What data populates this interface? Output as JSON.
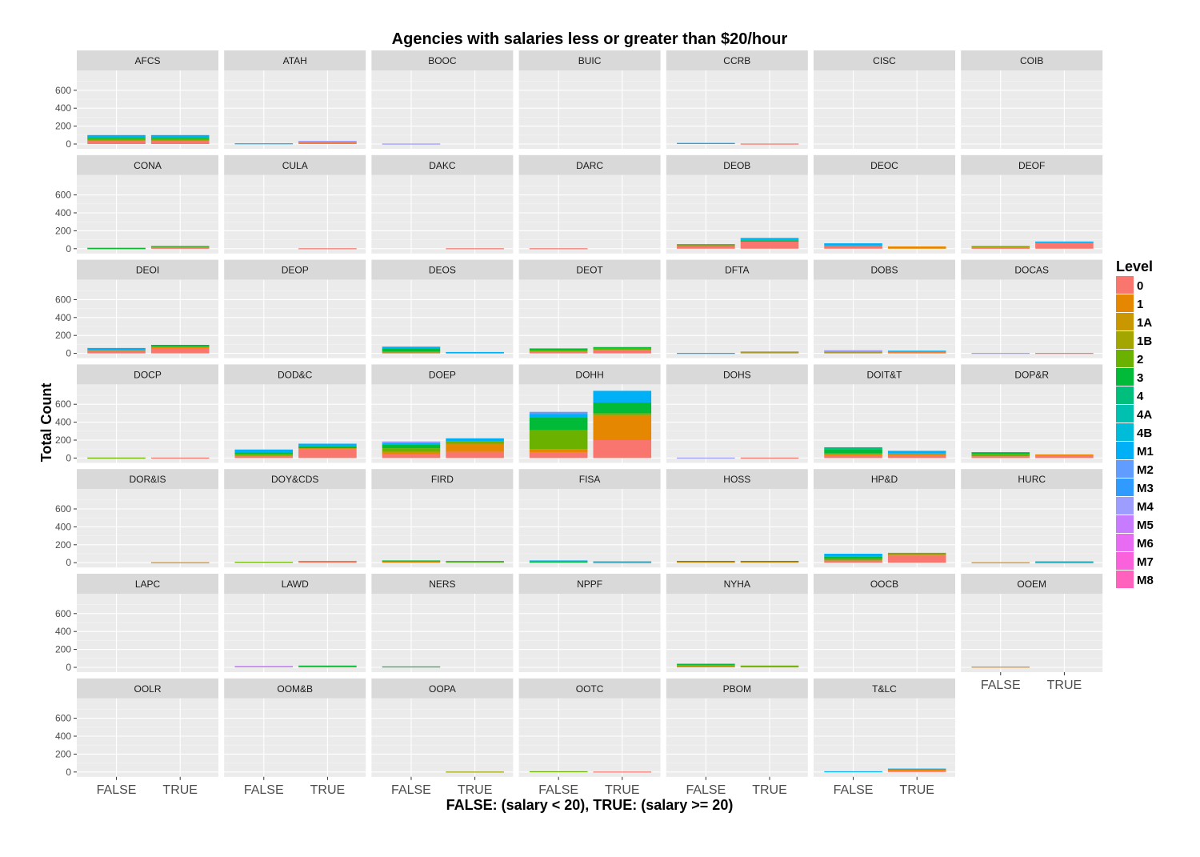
{
  "chart_data": {
    "type": "bar",
    "title": "Agencies with salaries less or greater than $20/hour",
    "xlabel": "FALSE: (salary < 20), TRUE: (salary >= 20)",
    "ylabel": "Total Count",
    "categories": [
      "FALSE",
      "TRUE"
    ],
    "ylim": [
      0,
      750
    ],
    "yticks": [
      0,
      200,
      400,
      600
    ],
    "grid": true,
    "legend": {
      "title": "Level",
      "position": "right",
      "levels": [
        "0",
        "1",
        "1A",
        "1B",
        "2",
        "3",
        "4",
        "4A",
        "4B",
        "M1",
        "M2",
        "M3",
        "M4",
        "M5",
        "M6",
        "M7",
        "M8"
      ],
      "colors": [
        "#F8766D",
        "#E58700",
        "#C99800",
        "#A3A500",
        "#6BB100",
        "#00BA38",
        "#00BF7D",
        "#00C0AF",
        "#00BCD8",
        "#00B0F6",
        "#619CFF",
        "#2f9bff",
        "#9d9dff",
        "#c77cff",
        "#e76bf3",
        "#fa62db",
        "#ff62bc"
      ]
    },
    "panels": [
      {
        "name": "AFCS",
        "false": [
          {
            "level": "0",
            "value": 35
          },
          {
            "level": "1",
            "value": 10
          },
          {
            "level": "2",
            "value": 10
          },
          {
            "level": "3",
            "value": 15
          },
          {
            "level": "4",
            "value": 10
          },
          {
            "level": "M1",
            "value": 20
          }
        ],
        "true": [
          {
            "level": "0",
            "value": 35
          },
          {
            "level": "1",
            "value": 10
          },
          {
            "level": "2",
            "value": 10
          },
          {
            "level": "3",
            "value": 15
          },
          {
            "level": "4",
            "value": 10
          },
          {
            "level": "M1",
            "value": 20
          }
        ]
      },
      {
        "name": "ATAH",
        "false": [
          {
            "level": "M1",
            "value": 8
          }
        ],
        "true": [
          {
            "level": "0",
            "value": 20
          },
          {
            "level": "1",
            "value": 5
          },
          {
            "level": "M4",
            "value": 10
          }
        ]
      },
      {
        "name": "BOOC",
        "false": [
          {
            "level": "M4",
            "value": 5
          }
        ],
        "true": []
      },
      {
        "name": "BUIC",
        "false": [],
        "true": []
      },
      {
        "name": "CCRB",
        "false": [
          {
            "level": "M1",
            "value": 12
          }
        ],
        "true": [
          {
            "level": "0",
            "value": 5
          }
        ]
      },
      {
        "name": "CISC",
        "false": [],
        "true": []
      },
      {
        "name": "COIB",
        "false": [],
        "true": []
      },
      {
        "name": "CONA",
        "false": [
          {
            "level": "2",
            "value": 5
          },
          {
            "level": "3",
            "value": 5
          }
        ],
        "true": [
          {
            "level": "0",
            "value": 10
          },
          {
            "level": "1",
            "value": 10
          },
          {
            "level": "3",
            "value": 10
          }
        ]
      },
      {
        "name": "CULA",
        "false": [],
        "true": [
          {
            "level": "0",
            "value": 5
          }
        ]
      },
      {
        "name": "DAKC",
        "false": [],
        "true": [
          {
            "level": "0",
            "value": 5
          }
        ]
      },
      {
        "name": "DARC",
        "false": [
          {
            "level": "0",
            "value": 5
          }
        ],
        "true": []
      },
      {
        "name": "DEOB",
        "false": [
          {
            "level": "0",
            "value": 25
          },
          {
            "level": "1",
            "value": 15
          },
          {
            "level": "3",
            "value": 10
          }
        ],
        "true": [
          {
            "level": "0",
            "value": 80
          },
          {
            "level": "3",
            "value": 10
          },
          {
            "level": "4",
            "value": 10
          },
          {
            "level": "M1",
            "value": 20
          }
        ]
      },
      {
        "name": "DEOC",
        "false": [
          {
            "level": "0",
            "value": 25
          },
          {
            "level": "1",
            "value": 10
          },
          {
            "level": "M1",
            "value": 25
          }
        ],
        "true": [
          {
            "level": "1",
            "value": 25
          }
        ]
      },
      {
        "name": "DEOF",
        "false": [
          {
            "level": "0",
            "value": 10
          },
          {
            "level": "1",
            "value": 15
          },
          {
            "level": "2",
            "value": 5
          }
        ],
        "true": [
          {
            "level": "0",
            "value": 70
          },
          {
            "level": "1",
            "value": 5
          },
          {
            "level": "M1",
            "value": 5
          }
        ]
      },
      {
        "name": "DEOI",
        "false": [
          {
            "level": "0",
            "value": 30
          },
          {
            "level": "2",
            "value": 10
          },
          {
            "level": "M1",
            "value": 20
          }
        ],
        "true": [
          {
            "level": "0",
            "value": 55
          },
          {
            "level": "1",
            "value": 20
          },
          {
            "level": "3",
            "value": 20
          }
        ]
      },
      {
        "name": "DEOP",
        "false": [],
        "true": []
      },
      {
        "name": "DEOS",
        "false": [
          {
            "level": "0",
            "value": 10
          },
          {
            "level": "2",
            "value": 10
          },
          {
            "level": "3",
            "value": 35
          },
          {
            "level": "M1",
            "value": 20
          }
        ],
        "true": [
          {
            "level": "2",
            "value": 10
          },
          {
            "level": "M1",
            "value": 5
          }
        ]
      },
      {
        "name": "DEOT",
        "false": [
          {
            "level": "0",
            "value": 20
          },
          {
            "level": "2",
            "value": 15
          },
          {
            "level": "3",
            "value": 20
          }
        ],
        "true": [
          {
            "level": "0",
            "value": 40
          },
          {
            "level": "2",
            "value": 15
          },
          {
            "level": "3",
            "value": 15
          }
        ]
      },
      {
        "name": "DFTA",
        "false": [
          {
            "level": "M1",
            "value": 5
          }
        ],
        "true": [
          {
            "level": "0",
            "value": 10
          },
          {
            "level": "2",
            "value": 10
          }
        ]
      },
      {
        "name": "DOBS",
        "false": [
          {
            "level": "0",
            "value": 10
          },
          {
            "level": "2",
            "value": 10
          },
          {
            "level": "M4",
            "value": 15
          }
        ],
        "true": [
          {
            "level": "0",
            "value": 10
          },
          {
            "level": "1",
            "value": 10
          },
          {
            "level": "M1",
            "value": 10
          }
        ]
      },
      {
        "name": "DOCAS",
        "false": [
          {
            "level": "M4",
            "value": 5
          }
        ],
        "true": [
          {
            "level": "0",
            "value": 5
          }
        ]
      },
      {
        "name": "DOCP",
        "false": [
          {
            "level": "2",
            "value": 5
          }
        ],
        "true": [
          {
            "level": "0",
            "value": 5
          }
        ]
      },
      {
        "name": "DOD&C",
        "false": [
          {
            "level": "0",
            "value": 20
          },
          {
            "level": "1",
            "value": 10
          },
          {
            "level": "2",
            "value": 15
          },
          {
            "level": "3",
            "value": 20
          },
          {
            "level": "M1",
            "value": 30
          }
        ],
        "true": [
          {
            "level": "0",
            "value": 100
          },
          {
            "level": "1",
            "value": 10
          },
          {
            "level": "3",
            "value": 20
          },
          {
            "level": "M1",
            "value": 30
          }
        ]
      },
      {
        "name": "DOEP",
        "false": [
          {
            "level": "0",
            "value": 40
          },
          {
            "level": "1",
            "value": 30
          },
          {
            "level": "2",
            "value": 40
          },
          {
            "level": "3",
            "value": 40
          },
          {
            "level": "M1",
            "value": 20
          },
          {
            "level": "M4",
            "value": 15
          }
        ],
        "true": [
          {
            "level": "0",
            "value": 70
          },
          {
            "level": "1",
            "value": 90
          },
          {
            "level": "2",
            "value": 30
          },
          {
            "level": "M1",
            "value": 30
          }
        ]
      },
      {
        "name": "DOHH",
        "false": [
          {
            "level": "0",
            "value": 60
          },
          {
            "level": "1",
            "value": 40
          },
          {
            "level": "2",
            "value": 210
          },
          {
            "level": "3",
            "value": 140
          },
          {
            "level": "M1",
            "value": 40
          },
          {
            "level": "M2",
            "value": 25
          }
        ],
        "true": [
          {
            "level": "0",
            "value": 200
          },
          {
            "level": "1",
            "value": 280
          },
          {
            "level": "2",
            "value": 20
          },
          {
            "level": "3",
            "value": 120
          },
          {
            "level": "M1",
            "value": 130
          }
        ]
      },
      {
        "name": "DOHS",
        "false": [
          {
            "level": "M4",
            "value": 5
          }
        ],
        "true": [
          {
            "level": "0",
            "value": 5
          }
        ]
      },
      {
        "name": "DOIT&T",
        "false": [
          {
            "level": "0",
            "value": 25
          },
          {
            "level": "1",
            "value": 25
          },
          {
            "level": "3",
            "value": 50
          },
          {
            "level": "4",
            "value": 20
          }
        ],
        "true": [
          {
            "level": "0",
            "value": 30
          },
          {
            "level": "1",
            "value": 20
          },
          {
            "level": "M1",
            "value": 30
          }
        ]
      },
      {
        "name": "DOP&R",
        "false": [
          {
            "level": "0",
            "value": 20
          },
          {
            "level": "2",
            "value": 25
          },
          {
            "level": "3",
            "value": 20
          }
        ],
        "true": [
          {
            "level": "0",
            "value": 30
          },
          {
            "level": "1",
            "value": 10
          }
        ]
      },
      {
        "name": "DOR&IS",
        "false": [],
        "true": [
          {
            "level": "1",
            "value": 5
          }
        ]
      },
      {
        "name": "DOY&CDS",
        "false": [
          {
            "level": "2",
            "value": 10
          }
        ],
        "true": [
          {
            "level": "0",
            "value": 10
          },
          {
            "level": "1",
            "value": 10
          }
        ]
      },
      {
        "name": "FIRD",
        "false": [
          {
            "level": "1",
            "value": 20
          },
          {
            "level": "3",
            "value": 5
          }
        ],
        "true": [
          {
            "level": "2",
            "value": 10
          },
          {
            "level": "M1",
            "value": 10
          }
        ]
      },
      {
        "name": "FISA",
        "false": [
          {
            "level": "3",
            "value": 10
          },
          {
            "level": "M1",
            "value": 15
          }
        ],
        "true": [
          {
            "level": "1",
            "value": 5
          },
          {
            "level": "M1",
            "value": 10
          }
        ]
      },
      {
        "name": "HOSS",
        "false": [
          {
            "level": "1",
            "value": 10
          },
          {
            "level": "3",
            "value": 10
          }
        ],
        "true": [
          {
            "level": "1",
            "value": 10
          },
          {
            "level": "3",
            "value": 10
          }
        ]
      },
      {
        "name": "HP&D",
        "false": [
          {
            "level": "0",
            "value": 25
          },
          {
            "level": "2",
            "value": 20
          },
          {
            "level": "3",
            "value": 20
          },
          {
            "level": "M1",
            "value": 35
          }
        ],
        "true": [
          {
            "level": "0",
            "value": 80
          },
          {
            "level": "1",
            "value": 15
          },
          {
            "level": "2",
            "value": 15
          }
        ]
      },
      {
        "name": "HURC",
        "false": [
          {
            "level": "1",
            "value": 5
          }
        ],
        "true": [
          {
            "level": "2",
            "value": 5
          },
          {
            "level": "M1",
            "value": 10
          }
        ]
      },
      {
        "name": "LAPC",
        "false": [],
        "true": []
      },
      {
        "name": "LAWD",
        "false": [
          {
            "level": "M5",
            "value": 15
          }
        ],
        "true": [
          {
            "level": "1",
            "value": 10
          },
          {
            "level": "3",
            "value": 10
          }
        ]
      },
      {
        "name": "NERS",
        "false": [
          {
            "level": "3",
            "value": 10
          }
        ],
        "true": []
      },
      {
        "name": "NPPF",
        "false": [],
        "true": []
      },
      {
        "name": "NYHA",
        "false": [
          {
            "level": "1",
            "value": 15
          },
          {
            "level": "2",
            "value": 10
          },
          {
            "level": "3",
            "value": 15
          }
        ],
        "true": [
          {
            "level": "1",
            "value": 10
          },
          {
            "level": "2",
            "value": 10
          }
        ]
      },
      {
        "name": "OOCB",
        "false": [],
        "true": []
      },
      {
        "name": "OOEM",
        "false": [
          {
            "level": "1",
            "value": 8
          }
        ],
        "true": []
      },
      {
        "name": "OOLR",
        "false": [],
        "true": []
      },
      {
        "name": "OOM&B",
        "false": [],
        "true": []
      },
      {
        "name": "OOPA",
        "false": [],
        "true": [
          {
            "level": "1B",
            "value": 5
          }
        ]
      },
      {
        "name": "OOTC",
        "false": [
          {
            "level": "2",
            "value": 8
          }
        ],
        "true": [
          {
            "level": "0",
            "value": 5
          }
        ]
      },
      {
        "name": "PBOM",
        "false": [],
        "true": []
      },
      {
        "name": "T&LC",
        "false": [
          {
            "level": "M1",
            "value": 8
          }
        ],
        "true": [
          {
            "level": "0",
            "value": 15
          },
          {
            "level": "1",
            "value": 15
          },
          {
            "level": "M1",
            "value": 8
          }
        ]
      }
    ]
  }
}
